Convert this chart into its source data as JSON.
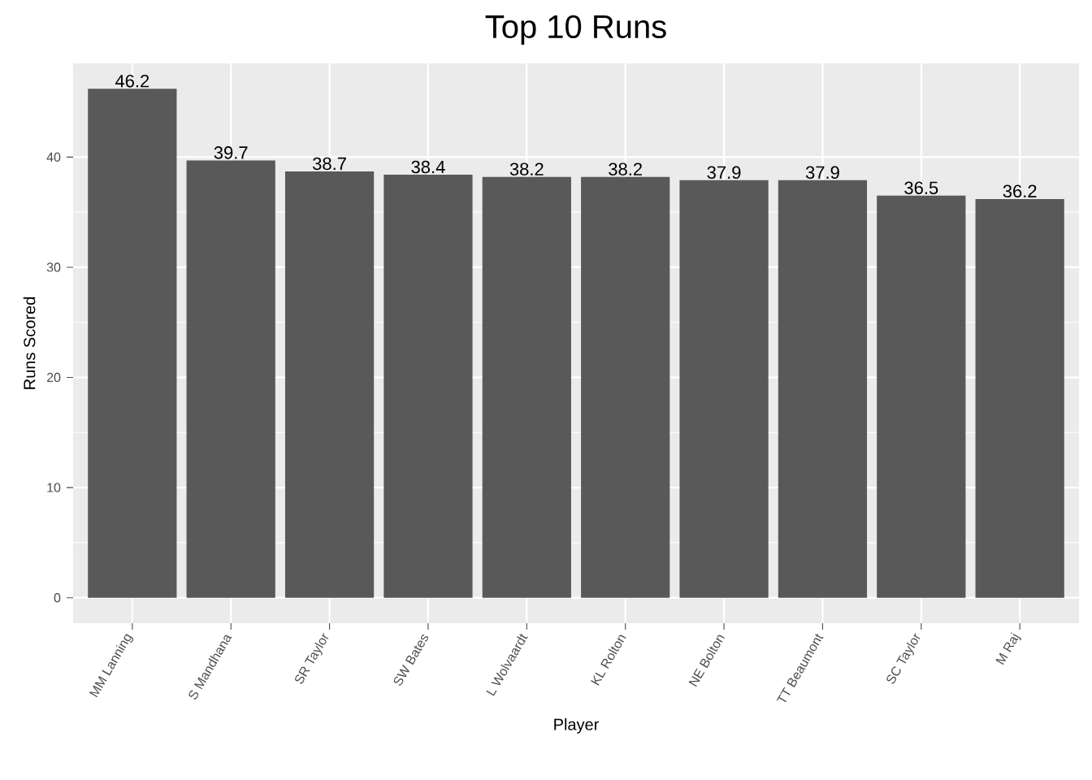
{
  "chart_data": {
    "type": "bar",
    "title": "Top 10 Runs",
    "xlabel": "Player",
    "ylabel": "Runs Scored",
    "categories": [
      "MM Lanning",
      "S Mandhana",
      "SR Taylor",
      "SW Bates",
      "L Wolvaardt",
      "KL Rolton",
      "NE Bolton",
      "TT Beaumont",
      "SC Taylor",
      "M Raj"
    ],
    "values": [
      46.2,
      39.7,
      38.7,
      38.4,
      38.2,
      38.2,
      37.9,
      37.9,
      36.5,
      36.2
    ],
    "color": "#595959",
    "ylim": [
      -2.31,
      48.51
    ],
    "yticks": [
      0,
      10,
      20,
      30,
      40
    ],
    "grid": true,
    "data_labels": true
  }
}
